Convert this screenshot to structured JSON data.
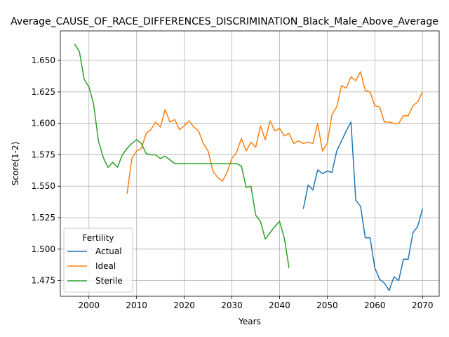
{
  "chart_data": {
    "type": "line",
    "title": "Average_CAUSE_OF_RACE_DIFFERENCES_DISCRIMINATION_Black_Male_Above_Average",
    "xlabel": "Years",
    "ylabel": "Score(1-2)",
    "xlim": [
      1994,
      2073.5
    ],
    "ylim": [
      1.4625,
      1.6735
    ],
    "xticks": [
      2000,
      2010,
      2020,
      2030,
      2040,
      2050,
      2060,
      2070
    ],
    "yticks": [
      1.475,
      1.5,
      1.525,
      1.55,
      1.575,
      1.6,
      1.625,
      1.65
    ],
    "grid": true,
    "legend": {
      "title": "Fertility",
      "position": "lower-left"
    },
    "series": [
      {
        "name": "Actual",
        "color": "#1f77b4",
        "x": [
          2045,
          2046,
          2047,
          2048,
          2049,
          2050,
          2051,
          2052,
          2053,
          2054,
          2055,
          2056,
          2057,
          2058,
          2059,
          2060,
          2061,
          2062,
          2063,
          2064,
          2065,
          2066,
          2067,
          2068,
          2069,
          2070
        ],
        "y": [
          1.532,
          1.551,
          1.547,
          1.563,
          1.56,
          1.562,
          1.561,
          1.578,
          1.586,
          1.594,
          1.601,
          1.539,
          1.534,
          1.509,
          1.509,
          1.485,
          1.476,
          1.473,
          1.467,
          1.478,
          1.475,
          1.492,
          1.492,
          1.513,
          1.518,
          1.532
        ]
      },
      {
        "name": "Ideal",
        "color": "#ff7f0e",
        "x": [
          2008,
          2009,
          2010,
          2011,
          2012,
          2013,
          2014,
          2015,
          2016,
          2017,
          2018,
          2019,
          2020,
          2021,
          2022,
          2023,
          2024,
          2025,
          2026,
          2027,
          2028,
          2029,
          2030,
          2031,
          2032,
          2033,
          2034,
          2035,
          2036,
          2037,
          2038,
          2039,
          2040,
          2041,
          2042,
          2043,
          2044,
          2045,
          2046,
          2047,
          2048,
          2049,
          2050,
          2051,
          2052,
          2053,
          2054,
          2055,
          2056,
          2057,
          2058,
          2059,
          2060,
          2061,
          2062,
          2063,
          2064,
          2065,
          2066,
          2067,
          2068,
          2069,
          2070
        ],
        "y": [
          1.544,
          1.572,
          1.578,
          1.58,
          1.592,
          1.595,
          1.601,
          1.597,
          1.611,
          1.601,
          1.603,
          1.595,
          1.598,
          1.602,
          1.597,
          1.594,
          1.584,
          1.578,
          1.562,
          1.557,
          1.554,
          1.561,
          1.572,
          1.577,
          1.588,
          1.578,
          1.585,
          1.581,
          1.598,
          1.587,
          1.602,
          1.594,
          1.596,
          1.59,
          1.592,
          1.584,
          1.586,
          1.584,
          1.585,
          1.584,
          1.6,
          1.578,
          1.584,
          1.607,
          1.613,
          1.63,
          1.628,
          1.637,
          1.634,
          1.641,
          1.626,
          1.625,
          1.614,
          1.613,
          1.601,
          1.601,
          1.6,
          1.6,
          1.606,
          1.606,
          1.614,
          1.617,
          1.625
        ]
      },
      {
        "name": "Sterile",
        "color": "#2ca02c",
        "x": [
          1997,
          1998,
          1999,
          2000,
          2001,
          2002,
          2003,
          2004,
          2005,
          2006,
          2007,
          2008,
          2009,
          2010,
          2011,
          2012,
          2013,
          2014,
          2015,
          2016,
          2017,
          2018,
          2019,
          2020,
          2021,
          2022,
          2023,
          2024,
          2025,
          2026,
          2027,
          2028,
          2029,
          2030,
          2031,
          2032,
          2033,
          2034,
          2035,
          2036,
          2037,
          2038,
          2039,
          2040,
          2041,
          2042
        ],
        "y": [
          1.663,
          1.657,
          1.635,
          1.629,
          1.615,
          1.586,
          1.573,
          1.565,
          1.569,
          1.565,
          1.575,
          1.58,
          1.584,
          1.587,
          1.584,
          1.576,
          1.575,
          1.575,
          1.572,
          1.574,
          1.571,
          1.568,
          1.568,
          1.568,
          1.568,
          1.568,
          1.568,
          1.568,
          1.568,
          1.568,
          1.568,
          1.568,
          1.568,
          1.568,
          1.568,
          1.566,
          1.549,
          1.55,
          1.527,
          1.522,
          1.508,
          1.513,
          1.518,
          1.522,
          1.509,
          1.485
        ]
      }
    ]
  }
}
